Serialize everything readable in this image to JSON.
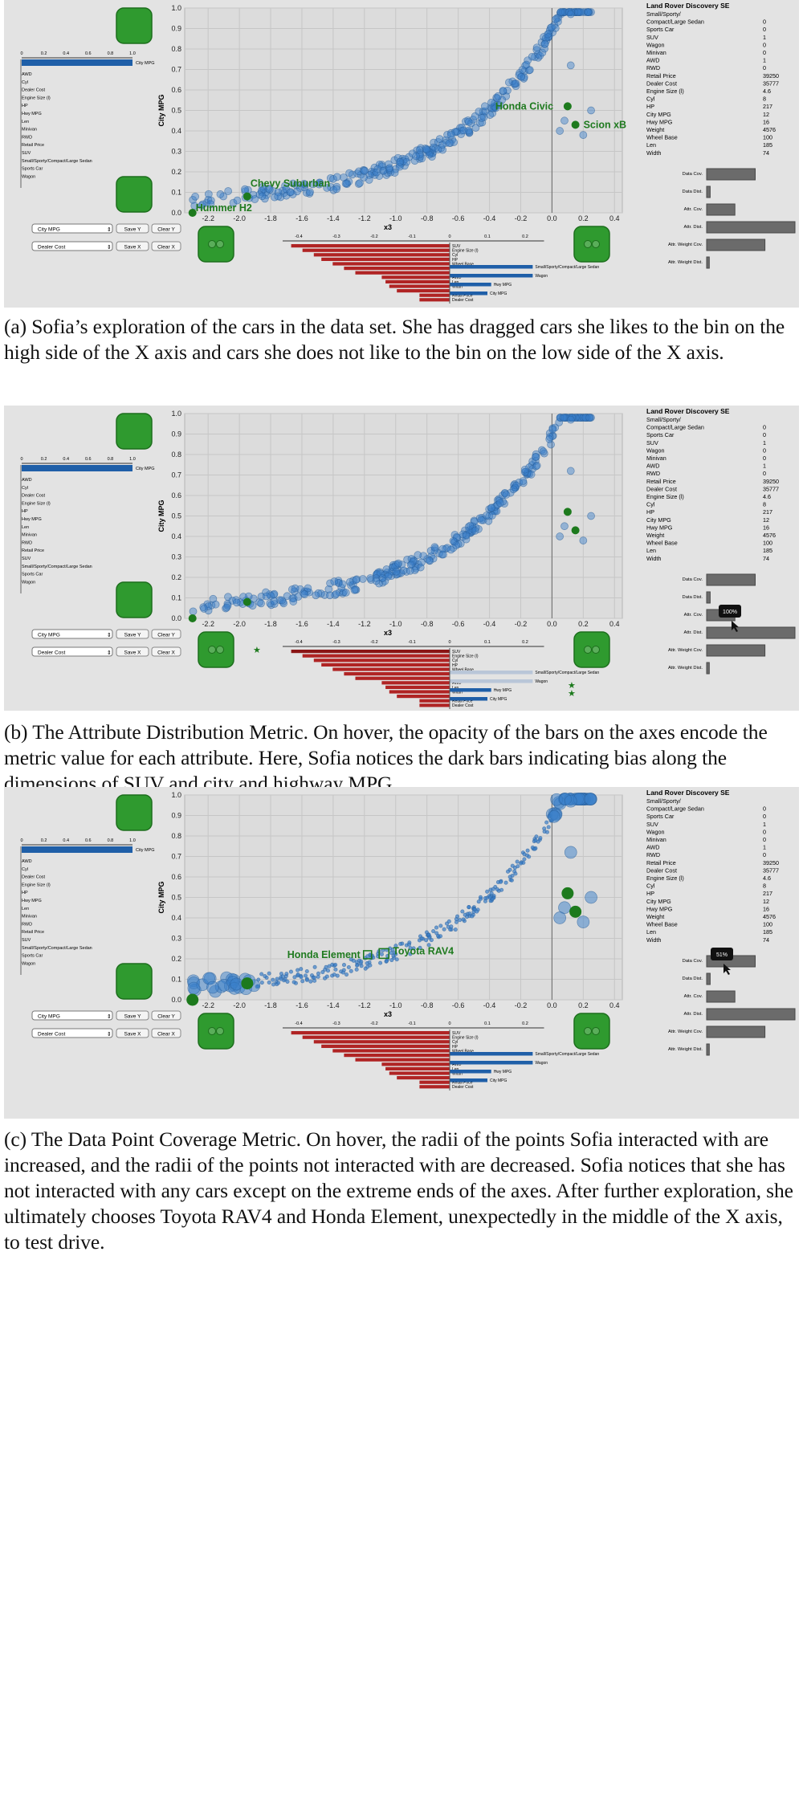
{
  "figure": {
    "car_name": "Land Rover Discovery SE",
    "attributes": [
      {
        "label": "Small/Sporty/",
        "value": ""
      },
      {
        "label": "Compact/Large Sedan",
        "value": "0"
      },
      {
        "label": "Sports Car",
        "value": "0"
      },
      {
        "label": "SUV",
        "value": "1"
      },
      {
        "label": "Wagon",
        "value": "0"
      },
      {
        "label": "Minivan",
        "value": "0"
      },
      {
        "label": "AWD",
        "value": "1"
      },
      {
        "label": "RWD",
        "value": "0"
      },
      {
        "label": "Retail Price",
        "value": "39250"
      },
      {
        "label": "Dealer Cost",
        "value": "35777"
      },
      {
        "label": "Engine Size (l)",
        "value": "4.6"
      },
      {
        "label": "Cyl",
        "value": "8"
      },
      {
        "label": "HP",
        "value": "217"
      },
      {
        "label": "City MPG",
        "value": "12"
      },
      {
        "label": "Hwy MPG",
        "value": "16"
      },
      {
        "label": "Weight",
        "value": "4576"
      },
      {
        "label": "Wheel Base",
        "value": "100"
      },
      {
        "label": "Len",
        "value": "185"
      },
      {
        "label": "Width",
        "value": "74"
      }
    ],
    "metrics": [
      {
        "label": "Data Cov.",
        "value": 0.55
      },
      {
        "label": "Data Dist.",
        "value": 0.04
      },
      {
        "label": "Attr. Cov.",
        "value": 0.32
      },
      {
        "label": "Attr. Dist.",
        "value": 1.0
      },
      {
        "label": "Attr. Weight Cov.",
        "value": 0.66
      },
      {
        "label": "Attr. Weight Dist.",
        "value": 0.03
      }
    ],
    "controls": {
      "y_select": "City MPG",
      "x_select": "Dealer Cost",
      "save_y": "Save Y",
      "clear_y": "Clear Y",
      "save_x": "Save X",
      "clear_x": "Clear X"
    },
    "left_weights": {
      "ticks": [
        "0",
        "0.2",
        "0.4",
        "0.6",
        "0.8",
        "1.0"
      ],
      "top_label": "City MPG",
      "top_value": 1.0,
      "labels": [
        "AWD",
        "Cyl",
        "Dealer Cost",
        "Engine Size (l)",
        "HP",
        "Hwy MPG",
        "Len",
        "Minivan",
        "RWD",
        "Retail Price",
        "SUV",
        "Small/Sporty/Compact/Large Sedan",
        "Sports Car",
        "Wagon"
      ]
    },
    "bottom_weights": {
      "ticks": [
        "-0.4",
        "-0.3",
        "-0.2",
        "-0.1",
        "0",
        "0.1",
        "0.2"
      ],
      "neg_labels": [
        "SUV",
        "Engine Size (l)",
        "Cyl",
        "HP",
        "Wheel Base",
        "",
        "",
        "AWD",
        "Len",
        "Width",
        "",
        "Retail Price",
        "Dealer Cost"
      ],
      "pos_labels": [
        "Small/Sporty/Compact/Large Sedan",
        "Wagon",
        "Hwy MPG",
        "City MPG"
      ]
    },
    "tooltip_b": "100%",
    "tooltip_c": "51%"
  },
  "chart_data": {
    "type": "scatter",
    "xlabel": "x3",
    "ylabel": "City MPG",
    "xlim": [
      -2.35,
      0.45
    ],
    "ylim": [
      0,
      1.0
    ],
    "xticks": [
      "-2.2",
      "-2.0",
      "-1.8",
      "-1.6",
      "-1.4",
      "-1.2",
      "-1.0",
      "-0.8",
      "-0.6",
      "-0.4",
      "-0.2",
      "0.0",
      "0.2",
      "0.4"
    ],
    "yticks": [
      "0.0",
      "0.1",
      "0.2",
      "0.3",
      "0.4",
      "0.5",
      "0.6",
      "0.7",
      "0.8",
      "0.9",
      "1.0"
    ],
    "highlighted": [
      {
        "x": 0.1,
        "y": 0.52,
        "label": "Honda Civic"
      },
      {
        "x": 0.15,
        "y": 0.43,
        "label": "Scion xB"
      },
      {
        "x": -1.95,
        "y": 0.08,
        "label": "Chevy Suburban"
      },
      {
        "x": -2.3,
        "y": 0.0,
        "label": "Hummer H2"
      }
    ],
    "labels_c": [
      {
        "x": -1.18,
        "y": 0.22,
        "label": "Honda Element"
      },
      {
        "x": -1.08,
        "y": 0.23,
        "label": "Toyota RAV4"
      }
    ]
  },
  "captions": {
    "a": "(a) Sofia’s exploration of the cars in the data set. She has dragged cars she likes to the bin on the high side of the X axis and cars she does not like to the bin on the low side of the X axis.",
    "b": "(b) The Attribute Distribution Metric. On hover, the opacity of the bars on the axes encode the metric value for each attribute. Here, Sofia notices the dark bars indicating bias along the dimensions of SUV and city and highway MPG.",
    "c": "(c) The Data Point Coverage Metric. On hover, the radii of the points Sofia interacted with are increased, and the radii of the points not interacted with are decreased. Sofia notices that she has not interacted with any cars except on the extreme ends of the axes. After further exploration, she ultimately chooses Toyota RAV4 and Honda Element, unexpectedly in the middle of the X axis, to test drive."
  }
}
